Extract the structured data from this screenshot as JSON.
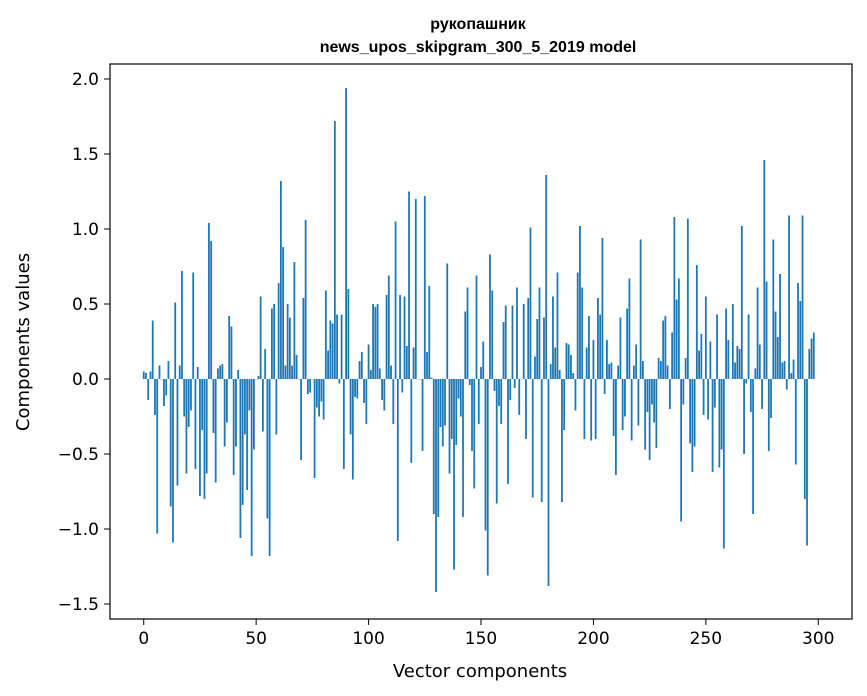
{
  "chart_data": {
    "type": "bar",
    "title_line1": "рукопашник",
    "title_line2": "news_upos_skipgram_300_5_2019 model",
    "xlabel": "Vector components",
    "ylabel": "Components values",
    "xlim": [
      -15,
      315
    ],
    "ylim": [
      -1.6,
      2.1
    ],
    "xticks": [
      0,
      50,
      100,
      150,
      200,
      250,
      300
    ],
    "xtick_labels": [
      "0",
      "50",
      "100",
      "150",
      "200",
      "250",
      "300"
    ],
    "yticks": [
      2.0,
      1.5,
      1.0,
      0.5,
      0.0,
      -0.5,
      -1.0,
      -1.5
    ],
    "ytick_labels": [
      "2.0",
      "1.5",
      "1.0",
      "0.5",
      "0.0",
      "−0.5",
      "−1.0",
      "−1.5"
    ],
    "bar_color": "#1f77b4",
    "grid": false,
    "values": [
      0.05,
      0.04,
      -0.14,
      0.05,
      0.39,
      -0.24,
      -1.03,
      0.09,
      0.0,
      -0.18,
      -0.11,
      0.12,
      -0.85,
      -1.09,
      0.51,
      -0.71,
      0.09,
      0.72,
      -0.25,
      -0.63,
      -0.32,
      -0.21,
      0.71,
      -0.6,
      0.08,
      -0.78,
      -0.34,
      -0.8,
      -0.63,
      1.04,
      0.92,
      -0.36,
      -0.69,
      0.07,
      0.09,
      0.1,
      -0.45,
      -0.29,
      0.42,
      0.35,
      -0.64,
      -0.45,
      0.06,
      -1.06,
      -0.84,
      -0.37,
      -0.74,
      -0.21,
      -1.18,
      -0.47,
      0.0,
      0.02,
      0.55,
      -0.35,
      0.2,
      -0.93,
      -1.18,
      0.47,
      0.5,
      -0.37,
      0.64,
      1.32,
      0.88,
      0.09,
      0.5,
      0.41,
      0.09,
      0.78,
      0.16,
      0.0,
      -0.54,
      0.54,
      1.06,
      -0.1,
      -0.09,
      0.0,
      -0.66,
      -0.19,
      -0.25,
      -0.15,
      -0.27,
      0.59,
      0.19,
      0.39,
      0.37,
      1.72,
      0.43,
      -0.03,
      0.43,
      -0.6,
      1.94,
      0.6,
      -0.37,
      -0.67,
      -0.12,
      -0.13,
      0.12,
      0.18,
      -0.16,
      -0.3,
      0.23,
      0.06,
      0.5,
      0.48,
      0.5,
      0.07,
      -0.14,
      -0.21,
      0.56,
      0.69,
      0.09,
      -0.3,
      1.05,
      -1.08,
      0.56,
      -0.09,
      0.55,
      0.22,
      1.25,
      -0.56,
      0.21,
      1.2,
      0.0,
      0.0,
      -0.48,
      1.22,
      0.18,
      0.62,
      0.01,
      -0.9,
      -1.42,
      -0.92,
      -0.32,
      -0.45,
      -0.31,
      0.77,
      -0.63,
      -0.4,
      -1.27,
      -0.44,
      -0.13,
      -0.25,
      -0.92,
      0.45,
      0.61,
      -0.04,
      -0.48,
      -0.73,
      0.69,
      -0.3,
      0.08,
      0.25,
      -1.01,
      -1.31,
      0.83,
      0.59,
      -0.08,
      -0.83,
      -0.18,
      -0.3,
      0.38,
      0.49,
      -0.7,
      -0.14,
      0.49,
      -0.06,
      0.61,
      -0.24,
      0.0,
      0.5,
      -0.4,
      0.54,
      1.01,
      -0.79,
      0.15,
      0.4,
      0.61,
      -0.82,
      0.41,
      1.36,
      -1.38,
      0.1,
      0.55,
      0.21,
      0.71,
      0.06,
      -0.82,
      -0.34,
      0.24,
      0.23,
      0.16,
      0.04,
      -0.21,
      0.71,
      1.02,
      0.61,
      -0.4,
      0.21,
      0.42,
      -0.41,
      0.26,
      -0.4,
      0.54,
      0.43,
      0.94,
      -0.1,
      0.26,
      0.1,
      0.11,
      -0.38,
      -0.64,
      0.09,
      0.41,
      -0.34,
      -0.25,
      0.47,
      0.67,
      -0.41,
      0.09,
      0.23,
      -0.31,
      0.93,
      0.12,
      -0.47,
      -0.22,
      -0.54,
      -0.17,
      -0.29,
      -0.46,
      0.14,
      0.12,
      0.39,
      0.42,
      0.09,
      -0.2,
      0.31,
      1.08,
      0.53,
      0.67,
      -0.95,
      -0.17,
      0.14,
      1.07,
      -0.43,
      -0.62,
      -0.45,
      0.76,
      0.19,
      0.3,
      -0.24,
      0.55,
      -0.27,
      0.25,
      -0.62,
      -0.19,
      0.43,
      -0.59,
      -0.47,
      -1.13,
      0.47,
      0.26,
      0.0,
      0.5,
      0.11,
      0.22,
      0.2,
      1.02,
      -0.5,
      -0.03,
      0.43,
      -0.22,
      -0.9,
      0.07,
      0.61,
      0.23,
      -0.2,
      1.46,
      0.65,
      -0.48,
      -0.26,
      0.93,
      0.45,
      0.28,
      0.7,
      0.11,
      0.12,
      -0.07,
      1.09,
      0.04,
      0.13,
      -0.57,
      0.64,
      0.52,
      1.09,
      -0.8,
      -1.11,
      0.2,
      0.27,
      0.31
    ]
  }
}
